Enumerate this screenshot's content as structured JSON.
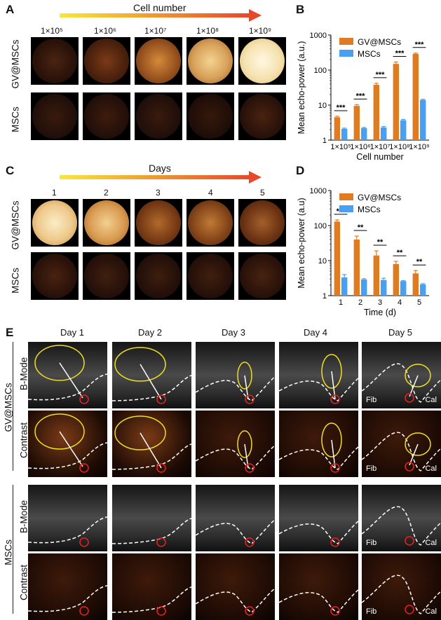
{
  "panels": {
    "A": "A",
    "B": "B",
    "C": "C",
    "D": "D",
    "E": "E"
  },
  "panelA": {
    "arrow_label": "Cell number",
    "columns": [
      "1×10⁵",
      "1×10⁶",
      "1×10⁷",
      "1×10⁸",
      "1×10⁹"
    ],
    "rows": [
      "GV@MSCs",
      "MSCs"
    ]
  },
  "panelC": {
    "arrow_label": "Days",
    "columns": [
      "1",
      "2",
      "3",
      "4",
      "5"
    ],
    "rows": [
      "GV@MSCs",
      "MSCs"
    ]
  },
  "panelE": {
    "columns": [
      "Day 1",
      "Day 2",
      "Day 3",
      "Day 4",
      "Day 5"
    ],
    "groups": [
      "GV@MSCs",
      "MSCs"
    ],
    "modes": [
      "B-Mode",
      "Contrast"
    ],
    "fib": "Fib",
    "cal": "Cal"
  },
  "chart_data": [
    {
      "type": "bar",
      "ylabel": "Mean echo-power (a.u.)",
      "xlabel": "Cell number",
      "categories": [
        "1×10⁵",
        "1×10⁶",
        "1×10⁷",
        "1×10⁸",
        "1×10⁹"
      ],
      "yscale": "log",
      "ylim": [
        1,
        1000
      ],
      "yticks": [
        "1",
        "10",
        "100",
        "1000"
      ],
      "legend_position": "top-right",
      "series": [
        {
          "name": "GV@MSCs",
          "color": "#e07b22",
          "values": [
            4.5,
            9.5,
            38,
            150,
            290
          ],
          "errors": [
            0.3,
            0.8,
            4,
            20,
            15
          ]
        },
        {
          "name": "MSCs",
          "color": "#4a9ff0",
          "values": [
            2.1,
            2.2,
            2.3,
            3.7,
            14
          ],
          "errors": [
            0.1,
            0.1,
            0.15,
            0.2,
            0.6
          ]
        }
      ],
      "significance": [
        "***",
        "***",
        "***",
        "***",
        "***"
      ]
    },
    {
      "type": "bar",
      "ylabel": "Mean echo-power (a.u)",
      "xlabel": "Time (d)",
      "categories": [
        "1",
        "2",
        "3",
        "4",
        "5"
      ],
      "yscale": "log",
      "ylim": [
        1,
        1000
      ],
      "yticks": [
        "1",
        "10",
        "100",
        "1000"
      ],
      "legend_position": "top-right",
      "series": [
        {
          "name": "GV@MSCs",
          "color": "#e07b22",
          "values": [
            130,
            40,
            14,
            8,
            4.3
          ],
          "errors": [
            15,
            10,
            5,
            1.5,
            0.9
          ]
        },
        {
          "name": "MSCs",
          "color": "#4a9ff0",
          "values": [
            3.3,
            2.9,
            2.8,
            2.6,
            2.1
          ],
          "errors": [
            0.7,
            0.15,
            0.35,
            0.1,
            0.1
          ]
        }
      ],
      "significance": [
        "***",
        "**",
        "**",
        "**",
        "**"
      ]
    }
  ]
}
